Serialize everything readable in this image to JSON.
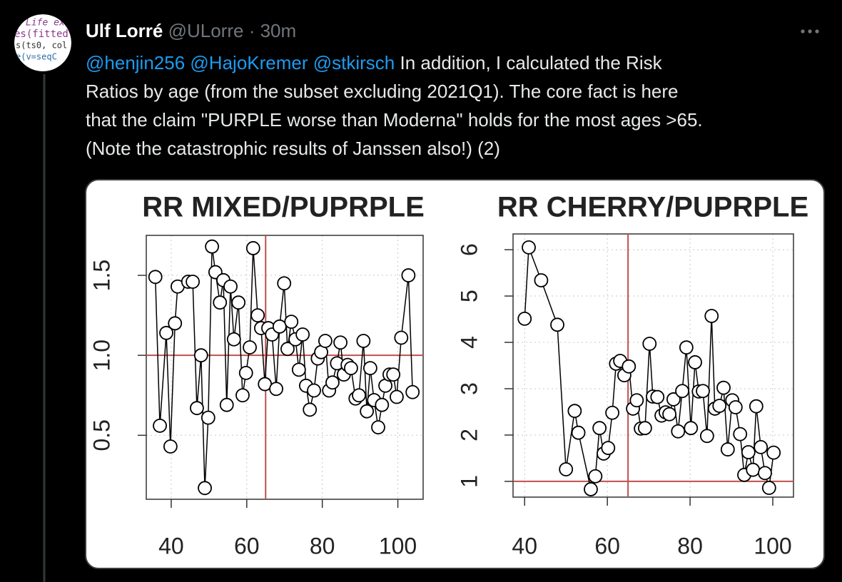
{
  "tweet": {
    "author": "Ulf Lorré",
    "handle": "@ULorre",
    "separator": "·",
    "time": "30m",
    "avatar_text": [
      "Life ex",
      "es(fitted(",
      "s(ts0, col",
      "e(v=seqC"
    ],
    "mentions": [
      "@henjin256",
      "@HajoKremer",
      "@stkirsch"
    ],
    "text_lines": [
      "In addition, I calculated the Risk",
      "Ratios by age (from the subset excluding 2021Q1). The core fact is here",
      "that the claim \"PURPLE worse than Moderna\" holds for the most ages >65.",
      "(Note the catastrophic results of Janssen also!) (2)"
    ]
  },
  "chart_data": [
    {
      "type": "scatter",
      "title": "RR MIXED/PUPRPLE",
      "color": "#000000",
      "ref_color": "#c0504d",
      "grid": true,
      "x": [
        35.8,
        37,
        38.7,
        39.8,
        41,
        41.7,
        44.5,
        45.7,
        46.8,
        47.9,
        48.9,
        49.8,
        50.8,
        51.7,
        52.9,
        53.8,
        54.7,
        55.7,
        56.6,
        57.8,
        58.9,
        59.8,
        60.8,
        61.7,
        62.9,
        63.8,
        64.8,
        65.7,
        66.7,
        67.8,
        68.7,
        69.9,
        70.8,
        71.8,
        72.9,
        73.8,
        74.8,
        75.7,
        76.7,
        77.8,
        78.8,
        79.7,
        80.8,
        81.8,
        82.7,
        83.9,
        84.8,
        85.7,
        86.7,
        87.6,
        88.8,
        89.7,
        90.9,
        91.8,
        92.7,
        93.7,
        94.8,
        95.8,
        96.7,
        97.8,
        98.8,
        99.7,
        100.9,
        102.8,
        103.9
      ],
      "y": [
        1.49,
        0.56,
        1.14,
        0.43,
        1.2,
        1.43,
        1.46,
        1.46,
        0.67,
        1.0,
        0.17,
        0.61,
        1.68,
        1.52,
        1.33,
        1.47,
        0.69,
        1.43,
        1.1,
        1.33,
        0.75,
        0.89,
        1.05,
        1.67,
        1.25,
        1.17,
        0.82,
        1.17,
        1.13,
        0.79,
        1.18,
        1.45,
        1.04,
        1.21,
        1.1,
        0.91,
        1.13,
        0.81,
        0.66,
        0.78,
        0.98,
        1.02,
        1.09,
        0.78,
        0.83,
        0.95,
        1.08,
        0.88,
        0.94,
        0.92,
        0.73,
        0.75,
        1.09,
        0.65,
        0.92,
        0.72,
        0.55,
        0.69,
        0.81,
        0.88,
        0.88,
        0.74,
        1.11,
        1.5,
        0.77
      ],
      "xlim": [
        33.4,
        106.7
      ],
      "ylim": [
        0.1,
        1.75
      ],
      "xticks": [
        40,
        60,
        80,
        100
      ],
      "yticks": [
        0.5,
        {
          "value": 1,
          "label": "1.0"
        },
        1.5
      ],
      "vline": 65,
      "hline": 1
    },
    {
      "type": "scatter",
      "title": "RR CHERRY/PUPRPLE",
      "color": "#000000",
      "ref_color": "#c0504d",
      "grid": true,
      "x": [
        40,
        41,
        44,
        47.9,
        50,
        52.1,
        53,
        56,
        57.1,
        58.1,
        59.1,
        60.2,
        61.2,
        62.1,
        63.1,
        64.1,
        65.2,
        66.2,
        67.1,
        68.1,
        69.1,
        70.2,
        71,
        72.1,
        73.1,
        74.1,
        75,
        76,
        77.1,
        78.1,
        79.1,
        80.2,
        81.2,
        82.1,
        83.1,
        84.1,
        85.2,
        86,
        87.1,
        88.1,
        89.1,
        90.2,
        91,
        92.1,
        93.1,
        94.1,
        95.2,
        96,
        97.1,
        98.1,
        99.1,
        100.2
      ],
      "y": [
        4.51,
        6.05,
        5.34,
        4.38,
        1.26,
        2.52,
        2.05,
        0.83,
        1.11,
        2.15,
        1.6,
        1.72,
        2.48,
        3.54,
        3.6,
        3.29,
        3.48,
        2.57,
        2.75,
        2.14,
        2.15,
        3.97,
        2.83,
        2.82,
        2.42,
        2.49,
        2.45,
        2.77,
        2.08,
        2.95,
        3.89,
        2.15,
        3.57,
        2.94,
        2.95,
        1.98,
        4.57,
        2.57,
        2.63,
        3.02,
        1.69,
        2.75,
        2.6,
        2.02,
        1.14,
        1.63,
        1.25,
        2.62,
        1.74,
        1.18,
        0.86,
        1.62
      ],
      "xlim": [
        37.2,
        105
      ],
      "ylim": [
        0.66,
        6.34
      ],
      "xticks": [
        40,
        60,
        80,
        100
      ],
      "yticks": [
        1,
        2,
        3,
        4,
        5,
        6
      ],
      "vline": 65,
      "hline": 1
    }
  ]
}
